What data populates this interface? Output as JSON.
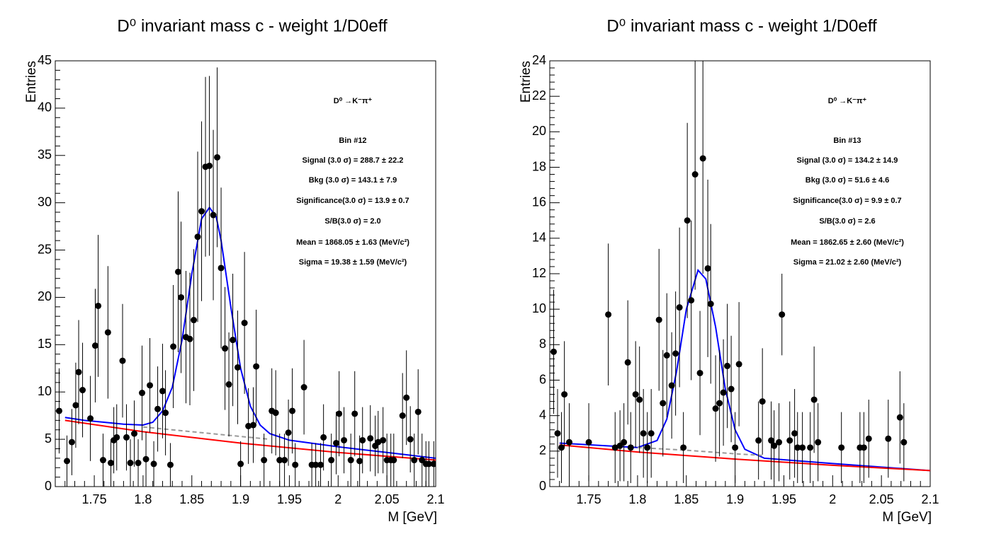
{
  "chart_data": [
    {
      "type": "scatter",
      "title": "D⁰ invariant mass c - weight 1/D0eff",
      "x_label": "M [GeV]",
      "y_label": "Entries",
      "xlim": [
        1.71,
        2.1
      ],
      "ylim": [
        0,
        45
      ],
      "xticks": [
        1.75,
        1.8,
        1.85,
        1.9,
        1.95,
        2,
        2.05,
        2.1
      ],
      "yticks": [
        0,
        5,
        10,
        15,
        20,
        25,
        30,
        35,
        40,
        45
      ],
      "color": "#000000",
      "x": [
        1.714,
        1.722,
        1.727,
        1.731,
        1.734,
        1.738,
        1.746,
        1.751,
        1.754,
        1.759,
        1.764,
        1.767,
        1.77,
        1.773,
        1.779,
        1.783,
        1.787,
        1.791,
        1.795,
        1.799,
        1.803,
        1.807,
        1.811,
        1.815,
        1.82,
        1.823,
        1.828,
        1.831,
        1.836,
        1.839,
        1.844,
        1.848,
        1.852,
        1.856,
        1.86,
        1.864,
        1.868,
        1.872,
        1.876,
        1.88,
        1.884,
        1.888,
        1.892,
        1.897,
        1.9,
        1.904,
        1.908,
        1.913,
        1.916,
        1.924,
        1.932,
        1.936,
        1.94,
        1.945,
        1.949,
        1.953,
        1.956,
        1.965,
        1.973,
        1.977,
        1.982,
        1.985,
        1.993,
        1.998,
        2.001,
        2.006,
        2.013,
        2.017,
        2.022,
        2.025,
        2.033,
        2.038,
        2.041,
        2.046,
        2.05,
        2.054,
        2.057,
        2.066,
        2.07,
        2.074,
        2.078,
        2.082,
        2.086,
        2.09,
        2.093,
        2.098
      ],
      "values": [
        8.0,
        2.7,
        4.7,
        8.6,
        12.1,
        10.2,
        7.2,
        14.9,
        19.1,
        2.8,
        16.3,
        2.5,
        4.9,
        5.2,
        13.3,
        5.2,
        2.5,
        5.6,
        2.5,
        9.9,
        2.9,
        10.7,
        2.4,
        8.2,
        10.1,
        7.8,
        2.3,
        14.8,
        22.7,
        20.0,
        15.8,
        15.6,
        17.6,
        26.4,
        29.1,
        33.8,
        33.9,
        28.7,
        34.8,
        23.1,
        14.6,
        10.8,
        15.5,
        12.6,
        2.4,
        17.3,
        6.4,
        6.5,
        12.7,
        2.8,
        8.0,
        7.8,
        2.8,
        2.8,
        5.7,
        8.0,
        2.3,
        10.5,
        2.3,
        2.3,
        2.3,
        5.2,
        2.8,
        4.6,
        7.7,
        4.9,
        2.8,
        7.7,
        2.7,
        4.9,
        5.1,
        4.3,
        4.7,
        4.9,
        2.8,
        2.8,
        2.8,
        7.5,
        9.4,
        5.0,
        2.8,
        7.9,
        2.8,
        2.4,
        2.4,
        2.4
      ],
      "errors": [
        4.5,
        2.7,
        3.5,
        4.5,
        5.5,
        5,
        4.5,
        6,
        7.5,
        2.8,
        7,
        2.5,
        3.5,
        3.5,
        6,
        3.5,
        2.5,
        3.5,
        2.5,
        5,
        2.9,
        5,
        2.4,
        4.5,
        5,
        4.5,
        2.3,
        6.5,
        8.5,
        8,
        7,
        7,
        7.5,
        9,
        9.5,
        9.5,
        9.5,
        9,
        9.5,
        8.5,
        6.5,
        5.5,
        7,
        6,
        2.4,
        7.5,
        4,
        4,
        6,
        2.8,
        4.5,
        4.5,
        2.8,
        2.8,
        3.5,
        4.5,
        2.3,
        5,
        2.3,
        2.3,
        2.3,
        3.5,
        2.8,
        3.3,
        4.5,
        3.5,
        2.8,
        4.5,
        2.7,
        3.5,
        3.5,
        3.2,
        3.3,
        3.5,
        2.8,
        2.8,
        2.8,
        4.5,
        5,
        3.5,
        2.8,
        4.5,
        2.8,
        2.4,
        2.4,
        2.4
      ],
      "fits": [
        {
          "color": "#0000ff",
          "dash": false,
          "x": [
            1.72,
            1.74,
            1.76,
            1.78,
            1.8,
            1.81,
            1.82,
            1.83,
            1.84,
            1.85,
            1.86,
            1.868,
            1.875,
            1.88,
            1.89,
            1.9,
            1.91,
            1.92,
            1.93,
            1.95,
            2.0,
            2.05,
            2.1
          ],
          "values": [
            7.3,
            7.0,
            6.8,
            6.6,
            6.5,
            6.8,
            8.0,
            10.5,
            15.5,
            22.5,
            28.3,
            29.5,
            28.5,
            26.0,
            19.0,
            12.5,
            8.5,
            6.5,
            5.6,
            4.9,
            4.2,
            3.6,
            3.0
          ]
        },
        {
          "color": "#ff0000",
          "dash": false,
          "x": [
            1.72,
            1.8,
            1.9,
            2.0,
            2.1
          ],
          "values": [
            7.0,
            5.8,
            4.6,
            3.6,
            2.8
          ]
        },
        {
          "color": "#999999",
          "dash": true,
          "x": [
            1.8,
            1.85,
            1.9,
            1.93
          ],
          "values": [
            6.3,
            5.8,
            5.3,
            5.0
          ]
        }
      ],
      "annotations": [
        "D⁰ →K⁻π⁺",
        "Bin #12",
        "Signal (3.0 σ) =  288.7 ± 22.2",
        "Bkg (3.0 σ) =  143.1 ± 7.9",
        "Significance(3.0 σ) =  13.9 ± 0.7",
        "S/B(3.0 σ) =  2.0",
        "Mean = 1868.05 ± 1.63 (MeV/c²)",
        "Sigma = 19.38 ± 1.59 (MeV/c²)"
      ]
    },
    {
      "type": "scatter",
      "title": "D⁰ invariant mass c - weight 1/D0eff",
      "x_label": "M [GeV]",
      "y_label": "Entries",
      "xlim": [
        1.71,
        2.1
      ],
      "ylim": [
        0,
        24
      ],
      "xticks": [
        1.75,
        1.8,
        1.85,
        1.9,
        1.95,
        2,
        2.05,
        2.1
      ],
      "yticks": [
        0,
        2,
        4,
        6,
        8,
        10,
        12,
        14,
        16,
        18,
        20,
        22,
        24
      ],
      "color": "#000000",
      "x": [
        1.714,
        1.718,
        1.722,
        1.725,
        1.73,
        1.75,
        1.77,
        1.777,
        1.782,
        1.786,
        1.79,
        1.793,
        1.798,
        1.802,
        1.806,
        1.81,
        1.814,
        1.822,
        1.826,
        1.83,
        1.835,
        1.839,
        1.843,
        1.847,
        1.851,
        1.855,
        1.859,
        1.864,
        1.867,
        1.872,
        1.875,
        1.88,
        1.884,
        1.888,
        1.892,
        1.896,
        1.9,
        1.904,
        1.924,
        1.928,
        1.937,
        1.94,
        1.945,
        1.948,
        1.956,
        1.961,
        1.964,
        1.969,
        1.977,
        1.981,
        1.985,
        2.009,
        2.028,
        2.032,
        2.037,
        2.057,
        2.069,
        2.073
      ],
      "values": [
        7.6,
        3.0,
        2.2,
        5.2,
        2.5,
        2.5,
        9.7,
        2.2,
        2.3,
        2.5,
        7.0,
        2.2,
        5.2,
        4.9,
        3.0,
        2.2,
        3.0,
        9.4,
        4.7,
        7.4,
        5.7,
        7.5,
        10.1,
        2.2,
        15.0,
        10.5,
        17.6,
        6.4,
        18.5,
        12.3,
        10.3,
        4.4,
        4.7,
        5.3,
        6.8,
        5.5,
        2.2,
        6.9,
        2.6,
        4.8,
        2.6,
        2.3,
        2.5,
        9.7,
        2.6,
        3.0,
        2.2,
        2.2,
        2.2,
        4.9,
        2.5,
        2.2,
        2.2,
        2.2,
        2.7,
        2.7,
        3.9,
        2.5
      ],
      "errors": [
        3.5,
        2.5,
        2,
        3,
        2.2,
        2.2,
        4,
        2,
        2,
        2.2,
        3.5,
        2,
        3,
        3,
        2.5,
        2,
        2.5,
        4,
        3,
        3.5,
        3,
        3.5,
        4.5,
        2,
        5.5,
        4.5,
        6.5,
        3.5,
        6.5,
        5,
        4.5,
        3,
        3,
        3,
        3.5,
        3,
        2,
        3.5,
        2.2,
        3,
        2.2,
        2,
        2.2,
        2.3,
        2.2,
        2.5,
        2,
        2,
        2,
        3,
        2.2,
        2,
        2,
        2,
        2.2,
        2.2,
        2.6,
        2.2
      ],
      "fits": [
        {
          "color": "#0000ff",
          "dash": false,
          "x": [
            1.72,
            1.8,
            1.82,
            1.83,
            1.84,
            1.85,
            1.862,
            1.87,
            1.88,
            1.89,
            1.9,
            1.91,
            1.93,
            2.0,
            2.1
          ],
          "values": [
            2.45,
            2.2,
            2.6,
            3.8,
            6.5,
            10.0,
            12.2,
            11.7,
            9.0,
            5.5,
            3.2,
            2.1,
            1.6,
            1.3,
            0.9
          ]
        },
        {
          "color": "#ff0000",
          "dash": false,
          "x": [
            1.72,
            1.8,
            1.9,
            2.0,
            2.1
          ],
          "values": [
            2.35,
            1.95,
            1.55,
            1.2,
            0.9
          ]
        },
        {
          "color": "#999999",
          "dash": true,
          "x": [
            1.8,
            1.85,
            1.9,
            1.93
          ],
          "values": [
            2.2,
            2.05,
            1.85,
            1.75
          ]
        }
      ],
      "annotations": [
        "D⁰ →K⁻π⁺",
        "Bin #13",
        "Signal (3.0 σ) =  134.2 ± 14.9",
        "Bkg (3.0 σ) =  51.6 ± 4.6",
        "Significance(3.0 σ) =  9.9 ± 0.7",
        "S/B(3.0 σ) =  2.6",
        "Mean = 1862.65 ± 2.60 (MeV/c²)",
        "Sigma = 21.02 ± 2.60 (MeV/c²)"
      ]
    }
  ]
}
